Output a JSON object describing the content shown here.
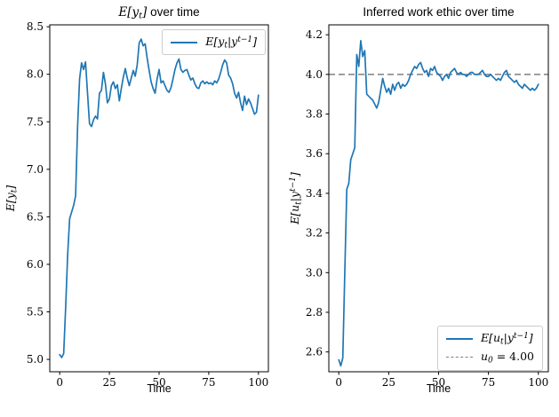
{
  "figure": {
    "background": "#ffffff",
    "line_color": "#1f77b4",
    "reference_line_color": "#7f7f7f",
    "spine_color": "#000000"
  },
  "chart_data": [
    {
      "type": "line",
      "title": "E[y_t] over time",
      "title_parts": [
        {
          "t": "E[y",
          "k": "math"
        },
        {
          "t": "t",
          "k": "sub"
        },
        {
          "t": "]",
          "k": "math"
        },
        {
          "t": " over time",
          "k": "text"
        }
      ],
      "xlabel": "Time",
      "ylabel": "E[y_t]",
      "ylabel_parts": [
        {
          "t": "E[y",
          "k": "math"
        },
        {
          "t": "t",
          "k": "sub"
        },
        {
          "t": "]",
          "k": "math"
        }
      ],
      "xlim": [
        -5,
        105
      ],
      "ylim": [
        4.87,
        8.52
      ],
      "xticks": [
        0,
        25,
        50,
        75,
        100
      ],
      "xtick_labels": [
        "0",
        "25",
        "50",
        "75",
        "100"
      ],
      "yticks": [
        5.0,
        5.5,
        6.0,
        6.5,
        7.0,
        7.5,
        8.0,
        8.5
      ],
      "ytick_labels": [
        "5.0",
        "5.5",
        "6.0",
        "6.5",
        "7.0",
        "7.5",
        "8.0",
        "8.5"
      ],
      "grid": false,
      "legend_position": "upper right",
      "legend_entries": [
        {
          "sample": "solid",
          "color": "#1f77b4",
          "label": "E[y_t|y^(t-1)]",
          "label_parts": [
            {
              "t": "E[y",
              "k": "math"
            },
            {
              "t": "t",
              "k": "sub"
            },
            {
              "t": "|y",
              "k": "math"
            },
            {
              "t": "t−1",
              "k": "sup"
            },
            {
              "t": "]",
              "k": "math"
            }
          ]
        }
      ],
      "series": [
        {
          "name": "E[y_t|y^(t-1)]",
          "type": "line",
          "color": "#1f77b4",
          "x_start": 0,
          "x_step": 1,
          "values": [
            5.05,
            5.02,
            5.06,
            5.55,
            6.1,
            6.48,
            6.55,
            6.62,
            6.72,
            7.45,
            7.95,
            8.12,
            8.05,
            8.13,
            7.8,
            7.48,
            7.45,
            7.52,
            7.56,
            7.53,
            7.8,
            7.83,
            8.02,
            7.9,
            7.7,
            7.74,
            7.88,
            7.92,
            7.85,
            7.89,
            7.72,
            7.85,
            7.97,
            8.06,
            7.96,
            7.88,
            7.96,
            8.04,
            7.98,
            8.1,
            8.33,
            8.37,
            8.3,
            8.32,
            8.17,
            8.04,
            7.92,
            7.85,
            7.8,
            7.95,
            8.05,
            7.91,
            7.93,
            7.88,
            7.83,
            7.81,
            7.86,
            7.95,
            8.05,
            8.12,
            8.16,
            8.05,
            8.02,
            8.04,
            8.05,
            7.99,
            7.94,
            7.96,
            7.9,
            7.86,
            7.85,
            7.91,
            7.93,
            7.9,
            7.92,
            7.9,
            7.91,
            7.89,
            7.93,
            7.91,
            7.95,
            8.02,
            8.1,
            8.15,
            8.12,
            7.99,
            7.96,
            7.9,
            7.8,
            7.75,
            7.81,
            7.7,
            7.62,
            7.77,
            7.68,
            7.74,
            7.7,
            7.64,
            7.58,
            7.6,
            7.78
          ]
        }
      ]
    },
    {
      "type": "line",
      "title": "Inferred work ethic over time",
      "title_parts": [
        {
          "t": "Inferred work ethic over time",
          "k": "text"
        }
      ],
      "xlabel": "Time",
      "ylabel": "E[u_t|y^(t-1)]",
      "ylabel_parts": [
        {
          "t": "E[u",
          "k": "math"
        },
        {
          "t": "t",
          "k": "sub"
        },
        {
          "t": "|y",
          "k": "math"
        },
        {
          "t": "t−1",
          "k": "sup"
        },
        {
          "t": "]",
          "k": "math"
        }
      ],
      "xlim": [
        -5,
        105
      ],
      "ylim": [
        2.5,
        4.25
      ],
      "xticks": [
        0,
        25,
        50,
        75,
        100
      ],
      "xtick_labels": [
        "0",
        "25",
        "50",
        "75",
        "100"
      ],
      "yticks": [
        2.6,
        2.8,
        3.0,
        3.2,
        3.4,
        3.6,
        3.8,
        4.0,
        4.2
      ],
      "ytick_labels": [
        "2.6",
        "2.8",
        "3.0",
        "3.2",
        "3.4",
        "3.6",
        "3.8",
        "4.0",
        "4.2"
      ],
      "grid": false,
      "legend_position": "lower right",
      "legend_entries": [
        {
          "sample": "solid",
          "color": "#1f77b4",
          "label": "E[u_t|y^(t-1)]",
          "label_parts": [
            {
              "t": "E[u",
              "k": "math"
            },
            {
              "t": "t",
              "k": "sub"
            },
            {
              "t": "|y",
              "k": "math"
            },
            {
              "t": "t−1",
              "k": "sup"
            },
            {
              "t": "]",
              "k": "math"
            }
          ]
        },
        {
          "sample": "dashed",
          "color": "#7f7f7f",
          "label": "u_0 = 4.00",
          "label_parts": [
            {
              "t": "u",
              "k": "math"
            },
            {
              "t": "0",
              "k": "sub"
            },
            {
              "t": " = 4.00",
              "k": "num"
            }
          ]
        }
      ],
      "series": [
        {
          "name": "E[u_t|y^(t-1)]",
          "type": "line",
          "color": "#1f77b4",
          "x_start": 0,
          "x_step": 1,
          "values": [
            2.56,
            2.53,
            2.57,
            3.0,
            3.42,
            3.45,
            3.57,
            3.6,
            3.63,
            4.1,
            4.04,
            4.17,
            4.09,
            4.12,
            3.9,
            3.89,
            3.88,
            3.87,
            3.85,
            3.83,
            3.86,
            3.92,
            3.98,
            3.94,
            3.91,
            3.93,
            3.9,
            3.95,
            3.92,
            3.95,
            3.96,
            3.93,
            3.95,
            3.94,
            3.95,
            3.97,
            4.0,
            4.02,
            4.04,
            4.03,
            4.05,
            4.06,
            4.03,
            4.01,
            4.02,
            3.99,
            4.03,
            4.02,
            4.04,
            4.01,
            4.0,
            3.99,
            3.97,
            3.99,
            4.0,
            3.98,
            4.01,
            4.02,
            4.03,
            4.01,
            4.0,
            4.01,
            4.0,
            4.0,
            3.99,
            4.0,
            4.01,
            4.01,
            4.0,
            4.0,
            4.0,
            4.01,
            4.02,
            4.0,
            3.99,
            3.99,
            4.0,
            3.99,
            3.98,
            3.97,
            3.98,
            3.97,
            3.99,
            4.01,
            4.02,
            3.99,
            3.98,
            3.97,
            3.96,
            3.97,
            3.95,
            3.94,
            3.93,
            3.95,
            3.94,
            3.93,
            3.92,
            3.93,
            3.92,
            3.93,
            3.95
          ]
        },
        {
          "name": "u_0 = 4.00",
          "type": "hline",
          "value": 4.0,
          "color": "#7f7f7f",
          "dashed": true
        }
      ]
    }
  ]
}
